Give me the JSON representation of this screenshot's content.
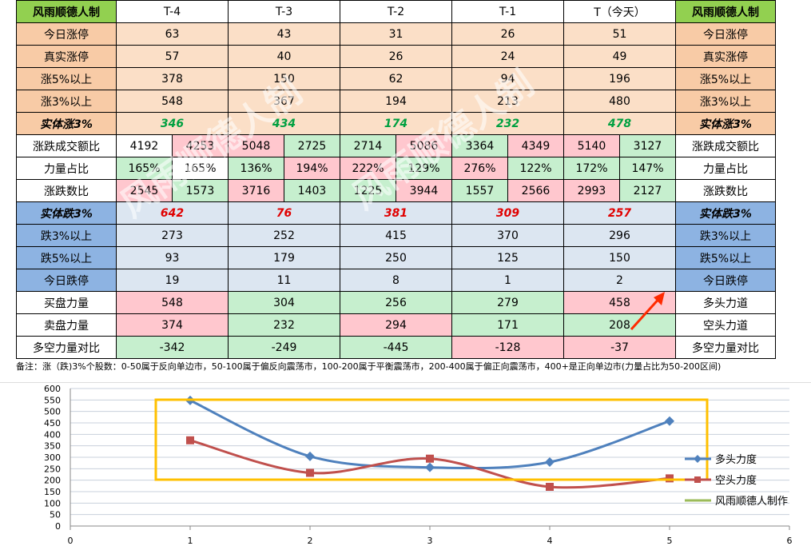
{
  "brand": "风雨顺德人制",
  "columns": [
    "T-4",
    "T-3",
    "T-2",
    "T-1",
    "T（今天）"
  ],
  "rows": [
    {
      "label": "今日涨停",
      "values": [
        "63",
        "43",
        "31",
        "26",
        "51"
      ],
      "style": "peach"
    },
    {
      "label": "真实涨停",
      "values": [
        "57",
        "40",
        "26",
        "24",
        "49"
      ],
      "style": "peach"
    },
    {
      "label": "涨5%以上",
      "values": [
        "378",
        "150",
        "62",
        "94",
        "196"
      ],
      "style": "peach"
    },
    {
      "label": "涨3%以上",
      "values": [
        "548",
        "367",
        "194",
        "213",
        "480"
      ],
      "style": "peach"
    },
    {
      "label": "实体涨3%",
      "values": [
        "346",
        "434",
        "174",
        "232",
        "478"
      ],
      "style": "peachbold"
    },
    {
      "label": "涨跌成交额比",
      "pairs": [
        [
          "4192",
          "4253"
        ],
        [
          "5048",
          "2725"
        ],
        [
          "2714",
          "5086"
        ],
        [
          "3364",
          "4349"
        ],
        [
          "5140",
          "3127"
        ]
      ],
      "pair_colors": [
        [
          "white",
          "pink"
        ],
        [
          "pink",
          "green"
        ],
        [
          "green",
          "pink"
        ],
        [
          "green",
          "pink"
        ],
        [
          "pink",
          "green"
        ]
      ]
    },
    {
      "label": "力量占比",
      "pairs": [
        [
          "165%",
          "165%"
        ],
        [
          "136%",
          "194%"
        ],
        [
          "222%",
          "129%"
        ],
        [
          "276%",
          "122%"
        ],
        [
          "172%",
          "147%"
        ]
      ],
      "pair_colors": [
        [
          "green",
          "white"
        ],
        [
          "green",
          "pink"
        ],
        [
          "pink",
          "green"
        ],
        [
          "pink",
          "green"
        ],
        [
          "green",
          "green"
        ]
      ]
    },
    {
      "label": "涨跌数比",
      "pairs": [
        [
          "2545",
          "1573"
        ],
        [
          "3716",
          "1403"
        ],
        [
          "1225",
          "3944"
        ],
        [
          "1557",
          "2566"
        ],
        [
          "2993",
          "2127"
        ]
      ],
      "pair_colors": [
        [
          "pink",
          "green"
        ],
        [
          "pink",
          "green"
        ],
        [
          "green",
          "pink"
        ],
        [
          "green",
          "pink"
        ],
        [
          "pink",
          "green"
        ]
      ]
    },
    {
      "label": "实体跌3%",
      "values": [
        "642",
        "76",
        "381",
        "309",
        "257"
      ],
      "style": "bluebold"
    },
    {
      "label": "跌3%以上",
      "values": [
        "273",
        "252",
        "415",
        "370",
        "296"
      ],
      "style": "blue"
    },
    {
      "label": "跌5%以上",
      "values": [
        "93",
        "179",
        "250",
        "125",
        "150"
      ],
      "style": "blue"
    },
    {
      "label": "今日跌停",
      "values": [
        "19",
        "11",
        "8",
        "1",
        "2"
      ],
      "style": "blue"
    },
    {
      "label": "买盘力量",
      "right_label": "多头力道",
      "values": [
        "548",
        "304",
        "256",
        "279",
        "458"
      ],
      "colors": [
        "pink",
        "green",
        "green",
        "green",
        "pink"
      ]
    },
    {
      "label": "卖盘力量",
      "right_label": "空头力道",
      "values": [
        "374",
        "232",
        "294",
        "171",
        "208"
      ],
      "colors": [
        "pink",
        "green",
        "pink",
        "green",
        "green"
      ]
    },
    {
      "label": "多空力量对比",
      "right_label": "多空力量对比",
      "values": [
        "-342",
        "-249",
        "-445",
        "-128",
        "-37"
      ],
      "colors": [
        "green",
        "green",
        "green",
        "pink",
        "pink"
      ]
    }
  ],
  "note": "备注：涨（跌)3%个股数：0-50属于反向单边市，50-100属于偏反向震荡市，100-200属于平衡震荡市，200-400属于偏正向震荡市，400+是正向单边市(力量占比为50-200区间)",
  "watermark": "风雨顺德人制",
  "colors": {
    "peach": "#fbdfc7",
    "blue": "#dce6f1",
    "green": "#c6efce",
    "pink": "#ffc7ce",
    "lime": "#92d050",
    "series1": "#4f81bd",
    "series2": "#c0504d",
    "series3": "#9bbb59",
    "highlight": "#ffc000"
  },
  "chart_data": {
    "type": "scatter",
    "x": [
      1,
      2,
      3,
      4,
      5
    ],
    "series": [
      {
        "name": "多头力度",
        "values": [
          548,
          304,
          256,
          279,
          458
        ],
        "color": "#4f81bd",
        "marker": "diamond"
      },
      {
        "name": "空头力度",
        "values": [
          374,
          232,
          294,
          171,
          208
        ],
        "color": "#c0504d",
        "marker": "square"
      },
      {
        "name": "风雨顺德人制作",
        "values": [],
        "color": "#9bbb59",
        "marker": "none"
      }
    ],
    "xlim": [
      0,
      6
    ],
    "ylim": [
      0,
      600
    ],
    "xticks": [
      0,
      1,
      2,
      3,
      4,
      5,
      6
    ],
    "yticks": [
      0,
      50,
      100,
      150,
      200,
      250,
      300,
      350,
      400,
      450,
      500,
      550,
      600
    ],
    "grid": true,
    "legend": "right",
    "smooth": true
  }
}
